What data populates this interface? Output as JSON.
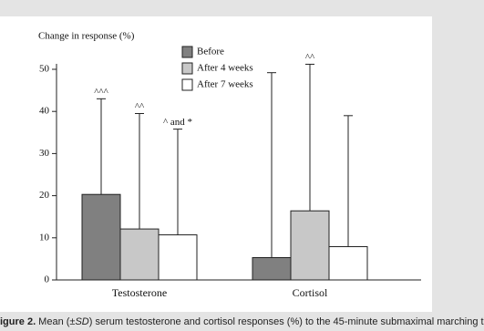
{
  "chart_data": {
    "type": "bar",
    "y_label": "Change in response (%)",
    "categories": [
      "Testosterone",
      "Cortisol"
    ],
    "series": [
      {
        "name": "Before",
        "color": "#808080",
        "values": [
          20.3,
          5.3
        ],
        "errors": [
          22.7,
          43.9
        ],
        "annotations": [
          "^^^",
          null
        ]
      },
      {
        "name": "After 4 weeks",
        "color": "#c8c8c8",
        "values": [
          12.1,
          16.4
        ],
        "errors": [
          27.4,
          34.8
        ],
        "annotations": [
          "^^",
          "^^"
        ]
      },
      {
        "name": "After 7 weeks",
        "color": "#ffffff",
        "values": [
          10.7,
          7.9
        ],
        "errors": [
          25.1,
          31.1
        ],
        "annotations": [
          "^ and *",
          null
        ]
      }
    ],
    "ylim": [
      0,
      50
    ],
    "yticks": [
      0,
      10,
      20,
      30,
      40,
      50
    ],
    "grid": false
  },
  "caption": {
    "label": "igure 2.",
    "before": " Mean (±",
    "italic": "SD",
    "after": ") serum testosterone and cortisol responses (%) to the 45-minute submaximal marching t"
  }
}
